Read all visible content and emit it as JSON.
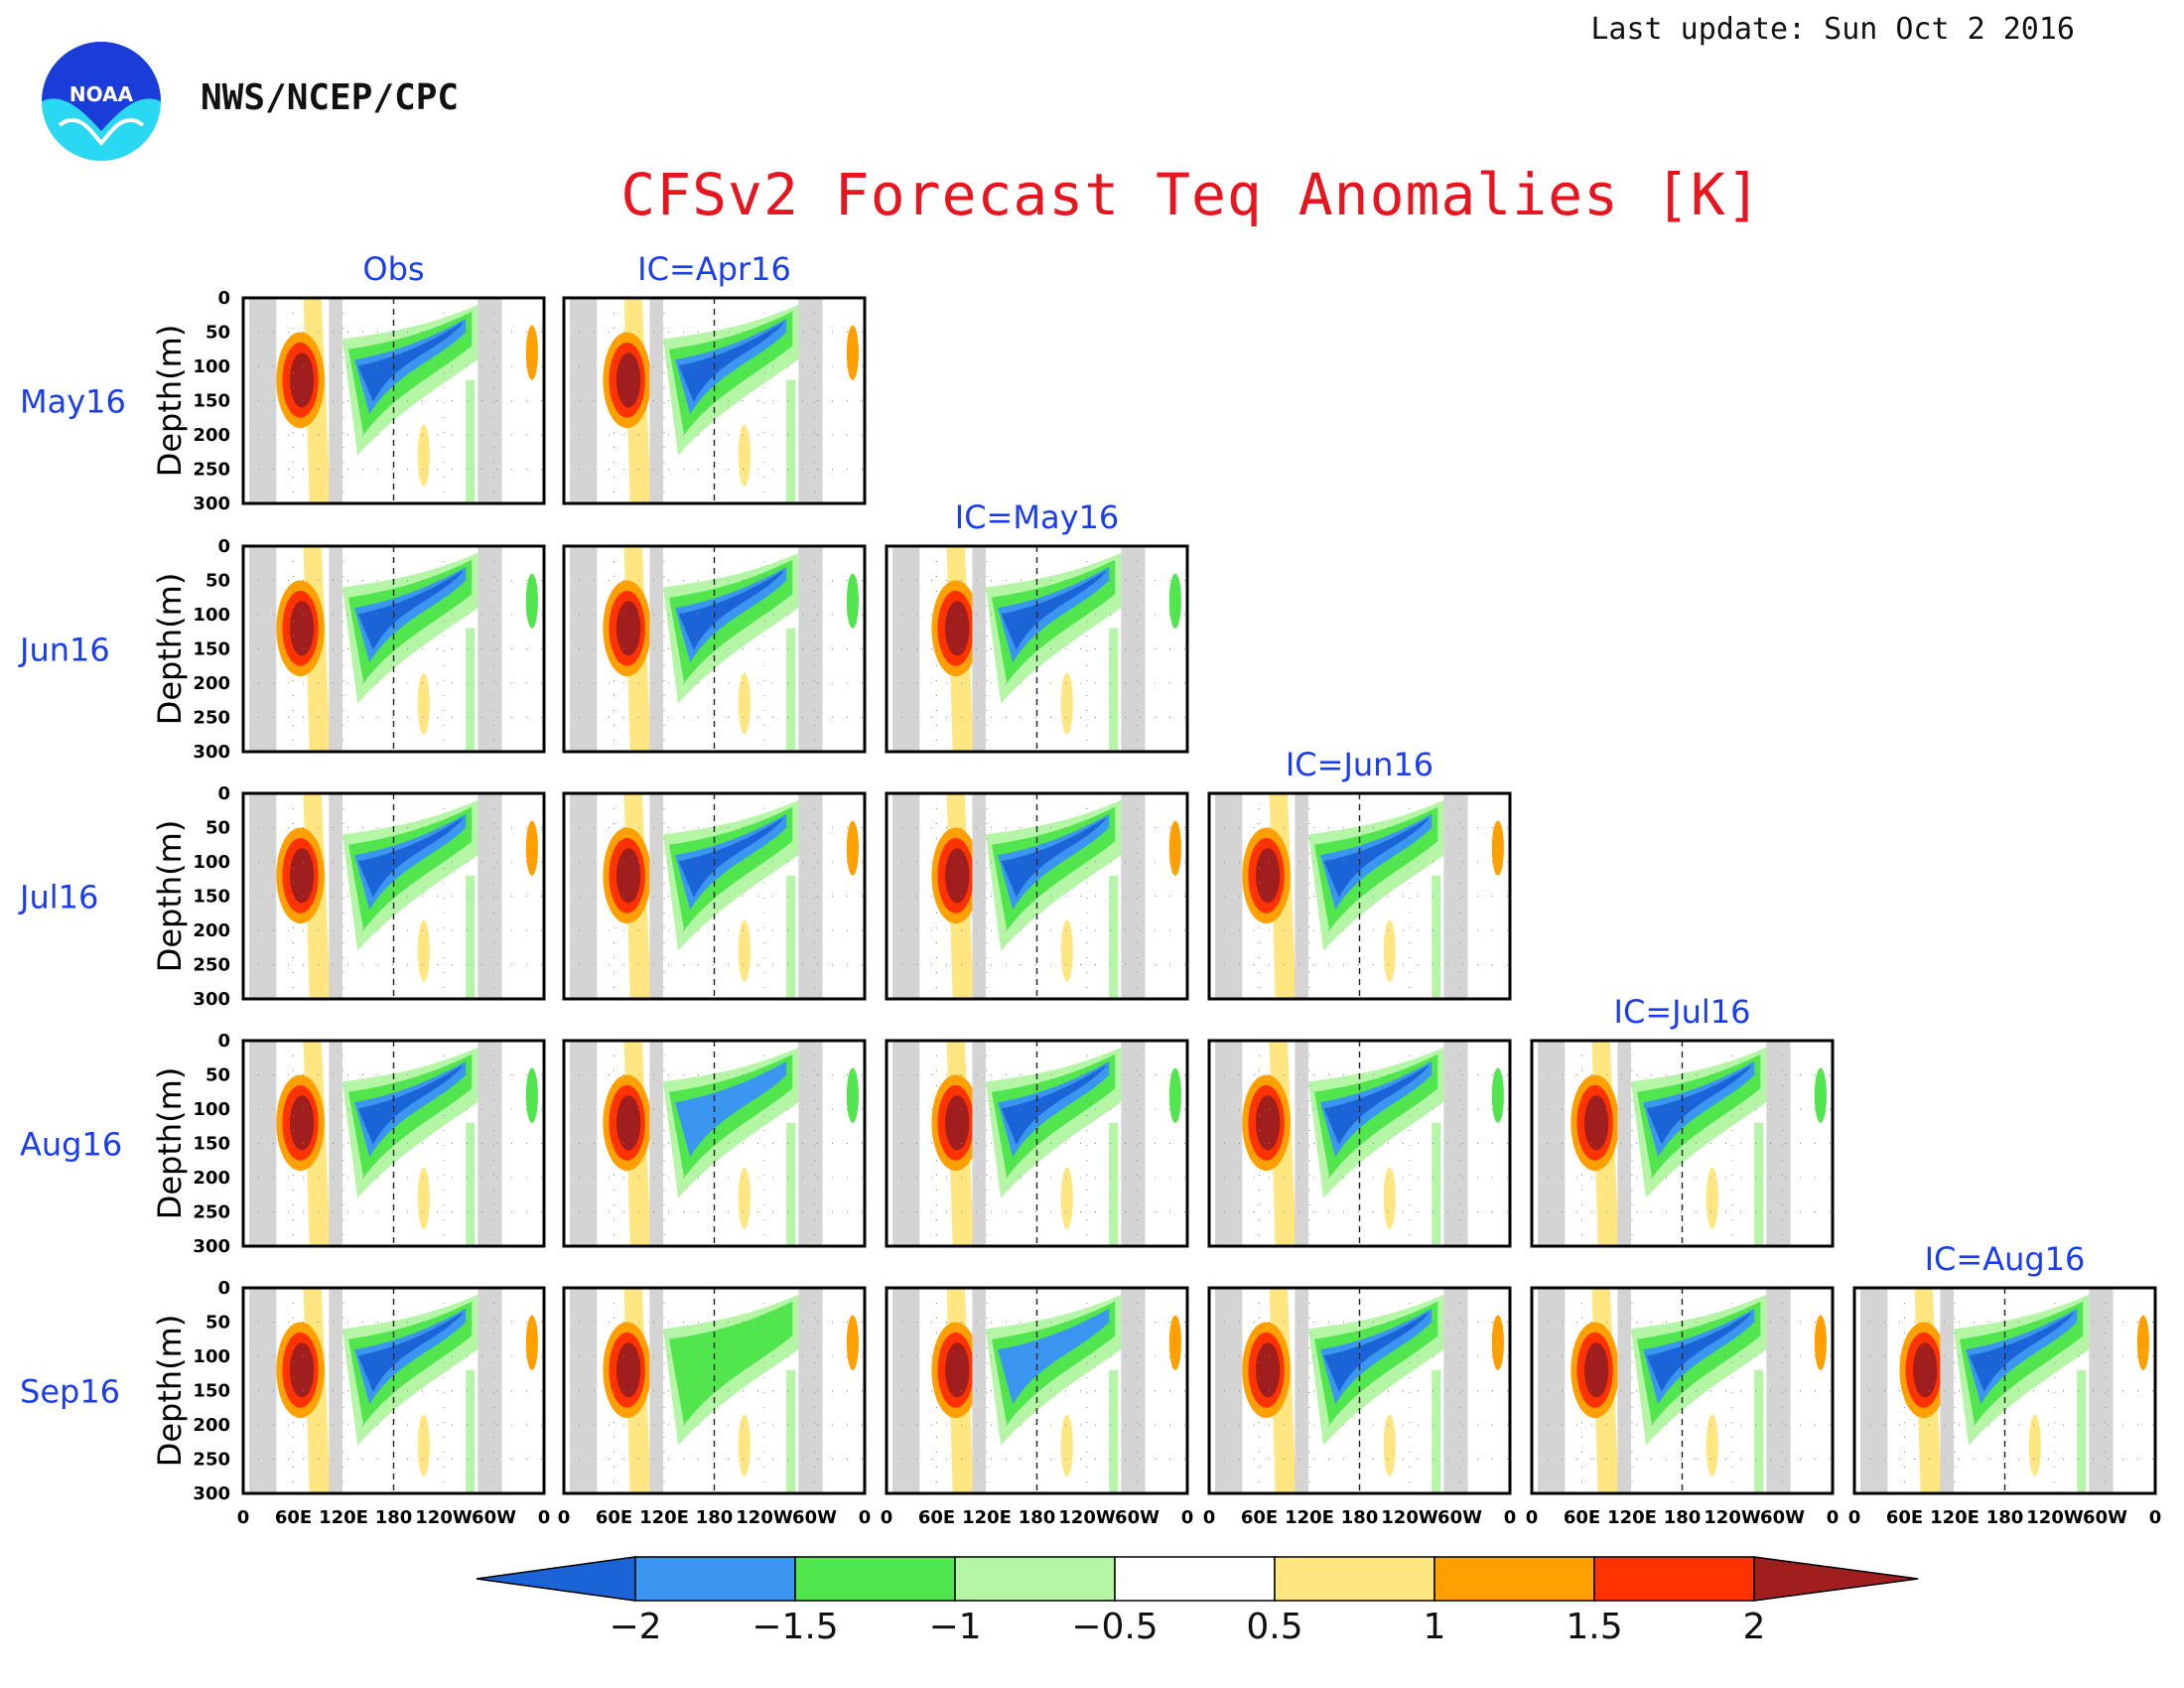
{
  "header": {
    "agency": "NWS/NCEP/CPC",
    "last_update": "Last update: Sun Oct 2 2016",
    "logo_text": "NOAA"
  },
  "chart_data": {
    "type": "heatmap",
    "title": "CFSv2 Forecast Teq Anomalies [K]",
    "ylabel": "Depth(m)",
    "y_ticks": [
      "0",
      "50",
      "100",
      "150",
      "200",
      "250",
      "300"
    ],
    "ylim": [
      300,
      0
    ],
    "x_ticks": [
      "0",
      "60E",
      "120E",
      "180",
      "120W",
      "60W",
      "0"
    ],
    "rows": [
      "May16",
      "Jun16",
      "Jul16",
      "Aug16",
      "Sep16"
    ],
    "columns": [
      "Obs",
      "IC=Apr16",
      "IC=May16",
      "IC=Jun16",
      "IC=Jul16",
      "IC=Aug16"
    ],
    "colorbar": {
      "levels": [
        "-2",
        "-1.5",
        "-1",
        "-0.5",
        "0.5",
        "1",
        "1.5",
        "2"
      ],
      "colors": [
        "#1a64d8",
        "#3a96f0",
        "#52e64e",
        "#b4f5a6",
        "#ffffff",
        "#ffe680",
        "#ffa000",
        "#ff3200",
        "#a01e1e"
      ]
    },
    "grid": true,
    "land_mask_color": "#d4d4d4"
  }
}
